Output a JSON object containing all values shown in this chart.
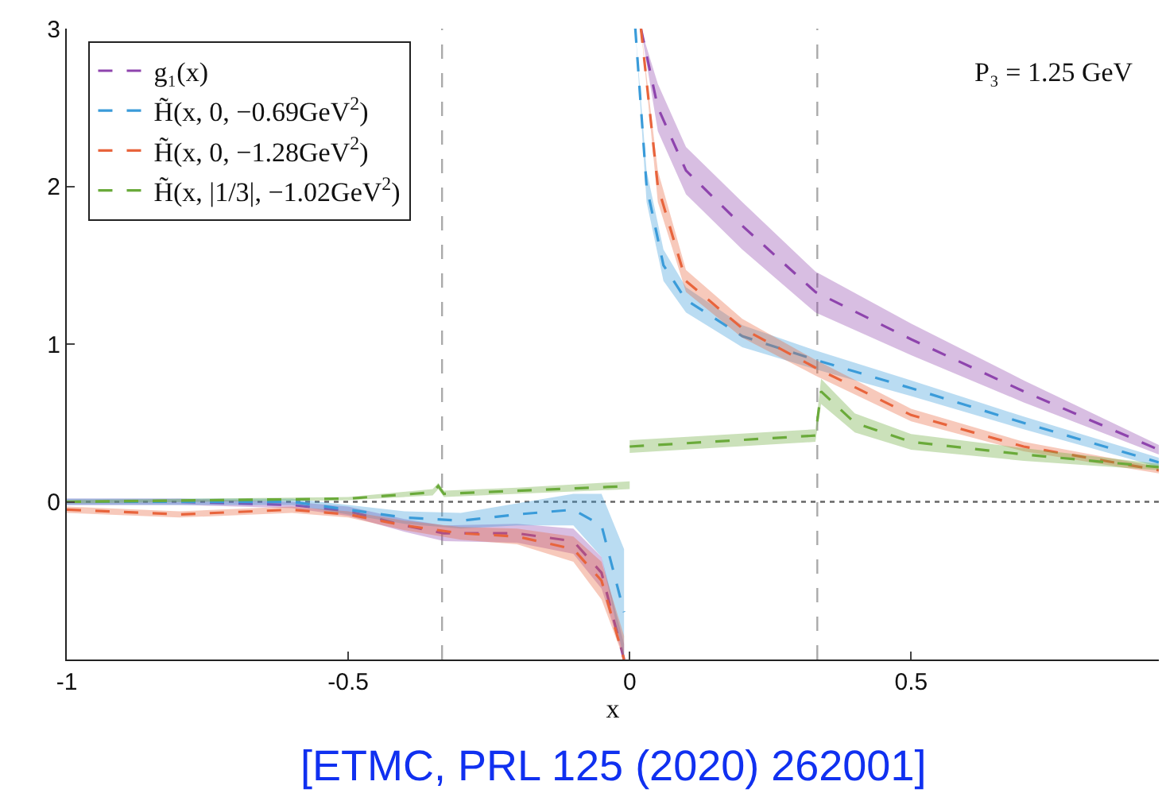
{
  "chart_data": {
    "type": "line",
    "xlabel": "x",
    "xlim": [
      -1,
      0.94
    ],
    "ylim": [
      -1,
      3
    ],
    "xticks": [
      -1,
      -0.5,
      0,
      0.5
    ],
    "yticks": [
      0,
      1,
      2,
      3
    ],
    "grid": false,
    "legend": "top left",
    "line_style": "dashed",
    "marker": "none",
    "series": [
      {
        "name": "g₁(x)",
        "color": "#8e44ad",
        "x": [
          -1,
          -0.8,
          -0.6,
          -0.5,
          -0.4,
          -0.33,
          -0.2,
          -0.1,
          -0.05,
          -0.01,
          null,
          0.02,
          0.05,
          0.1,
          0.2,
          0.33,
          0.5,
          0.7,
          0.94
        ],
        "values": [
          0,
          0,
          -0.02,
          -0.06,
          -0.15,
          -0.2,
          -0.2,
          -0.25,
          -0.45,
          -1,
          null,
          3,
          2.5,
          2.1,
          1.75,
          1.33,
          1.03,
          0.7,
          0.33
        ],
        "lower": [
          -0.02,
          -0.02,
          -0.04,
          -0.09,
          -0.19,
          -0.25,
          -0.26,
          -0.33,
          -0.55,
          -1,
          null,
          3,
          2.35,
          1.95,
          1.6,
          1.2,
          0.93,
          0.63,
          0.3
        ],
        "upper": [
          0.02,
          0.02,
          0,
          -0.03,
          -0.11,
          -0.15,
          -0.14,
          -0.17,
          -0.35,
          -0.9,
          null,
          3,
          2.65,
          2.25,
          1.9,
          1.46,
          1.13,
          0.77,
          0.36
        ]
      },
      {
        "name": "H̃(x, 0, −0.69GeV$^{2}$)",
        "color": "#3a9bd9",
        "x": [
          -1,
          -0.8,
          -0.6,
          -0.5,
          -0.4,
          -0.3,
          -0.2,
          -0.1,
          -0.05,
          -0.01,
          null,
          0.01,
          0.03,
          0.06,
          0.1,
          0.2,
          0.33,
          0.5,
          0.7,
          0.94
        ],
        "values": [
          0,
          0,
          0,
          -0.05,
          -0.1,
          -0.12,
          -0.08,
          -0.05,
          -0.15,
          -0.7,
          null,
          3,
          2,
          1.5,
          1.28,
          1.05,
          0.9,
          0.72,
          0.5,
          0.25
        ],
        "lower": [
          -0.02,
          -0.02,
          -0.02,
          -0.08,
          -0.14,
          -0.17,
          -0.15,
          -0.15,
          -0.35,
          -1,
          null,
          3,
          1.9,
          1.4,
          1.2,
          0.98,
          0.84,
          0.67,
          0.46,
          0.22
        ],
        "upper": [
          0.02,
          0.02,
          0.02,
          -0.02,
          -0.06,
          -0.07,
          -0.01,
          0.05,
          0.05,
          -0.3,
          null,
          3,
          2.1,
          1.6,
          1.36,
          1.12,
          0.96,
          0.77,
          0.54,
          0.28
        ]
      },
      {
        "name": "H̃(x, 0, −1.28GeV$^{2}$)",
        "color": "#e8643c",
        "x": [
          -1,
          -0.8,
          -0.6,
          -0.5,
          -0.4,
          -0.3,
          -0.2,
          -0.1,
          -0.05,
          -0.01,
          null,
          0.02,
          0.05,
          0.1,
          0.2,
          0.33,
          0.5,
          0.7,
          0.94
        ],
        "values": [
          -0.05,
          -0.08,
          -0.05,
          -0.08,
          -0.15,
          -0.2,
          -0.22,
          -0.3,
          -0.5,
          -1,
          null,
          3,
          2,
          1.4,
          1.1,
          0.85,
          0.55,
          0.35,
          0.2
        ],
        "lower": [
          -0.07,
          -0.1,
          -0.07,
          -0.1,
          -0.18,
          -0.24,
          -0.27,
          -0.38,
          -0.62,
          -1,
          null,
          3,
          1.9,
          1.33,
          1.04,
          0.8,
          0.51,
          0.32,
          0.18
        ],
        "upper": [
          -0.03,
          -0.06,
          -0.03,
          -0.06,
          -0.12,
          -0.16,
          -0.17,
          -0.22,
          -0.38,
          -0.85,
          null,
          3,
          2.1,
          1.47,
          1.16,
          0.9,
          0.59,
          0.38,
          0.22
        ]
      },
      {
        "name": "H̃(x, |1/3|, −1.02GeV$^{2}$)",
        "color": "#6aaa3a",
        "x": [
          -1,
          -0.5,
          -0.35,
          -0.34,
          -0.33,
          -0.2,
          0,
          null,
          0,
          0.33,
          0.34,
          0.4,
          0.5,
          0.7,
          0.94
        ],
        "values": [
          0,
          0.02,
          0.06,
          0.1,
          0.05,
          0.07,
          0.1,
          null,
          0.35,
          0.42,
          0.7,
          0.5,
          0.38,
          0.3,
          0.22
        ],
        "lower": [
          -0.01,
          0.01,
          0.04,
          0.08,
          0.03,
          0.05,
          0.08,
          null,
          0.31,
          0.38,
          0.62,
          0.44,
          0.33,
          0.26,
          0.2
        ],
        "upper": [
          0.01,
          0.03,
          0.08,
          0.12,
          0.07,
          0.09,
          0.13,
          null,
          0.39,
          0.46,
          0.78,
          0.56,
          0.43,
          0.34,
          0.24
        ]
      }
    ],
    "ref_lines": [
      {
        "axis": "y",
        "value": 0,
        "color": "#666666",
        "line_style": "dotted"
      },
      {
        "axis": "x",
        "value": -0.3333,
        "color": "#aaaaaa",
        "line_style": "dashed"
      },
      {
        "axis": "x",
        "value": 0.3333,
        "color": "#aaaaaa",
        "line_style": "dashed"
      }
    ],
    "annotations": [
      "P₃ = 1.25 GeV",
      "[ETMC, PRL 125 (2020) 262001]"
    ]
  }
}
